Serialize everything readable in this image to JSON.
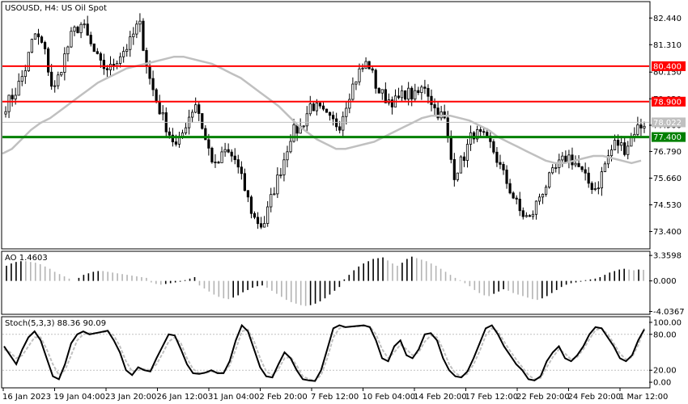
{
  "chart_data": [
    {
      "type": "candlestick",
      "pane": "main",
      "title": "USOUSD, H4:  US Oil Spot",
      "ylim": [
        72.7,
        83.1
      ],
      "y_ticks": [
        "82.440",
        "81.310",
        "80.150",
        "79.020",
        "77.900",
        "76.790",
        "75.660",
        "74.530",
        "73.400"
      ],
      "y_tick_values": [
        82.44,
        81.31,
        80.15,
        79.02,
        77.9,
        76.79,
        75.66,
        74.53,
        73.4
      ],
      "x_tick_labels": [
        "16 Jan 2023",
        "19 Jan 04:00",
        "23 Jan 20:00",
        "26 Jan 12:00",
        "31 Jan 04:00",
        "2 Feb 20:00",
        "7 Feb 12:00",
        "10 Feb 04:00",
        "14 Feb 20:00",
        "17 Feb 12:00",
        "22 Feb 20:00",
        "24 Feb 20:00",
        "1 Mar 12:00"
      ],
      "current_price": "78.022",
      "levels": [
        {
          "value": 80.4,
          "label": "80.400",
          "color": "#ff0000"
        },
        {
          "value": 78.9,
          "label": "78.900",
          "color": "#ff0000"
        },
        {
          "value": 77.4,
          "label": "77.400",
          "color": "#008000"
        }
      ],
      "close_path": [
        78.75,
        79.3,
        80.2,
        81.8,
        81.2,
        79.25,
        80.6,
        81.8,
        82.2,
        81.2,
        80.4,
        80.3,
        80.9,
        81.35,
        82.3,
        80.0,
        78.7,
        77.7,
        76.9,
        78.1,
        78.9,
        77.2,
        76.1,
        76.8,
        76.5,
        75.3,
        74.0,
        73.6,
        75.0,
        76.2,
        77.6,
        77.8,
        78.8,
        78.5,
        78.1,
        77.9,
        79.2,
        80.1,
        80.6,
        79.4,
        79.0,
        78.9,
        79.3,
        79.1,
        79.6,
        78.6,
        78.2,
        75.8,
        76.5,
        77.6,
        77.4,
        77.0,
        76.0,
        75.1,
        74.2,
        73.9,
        74.9,
        75.6,
        76.2,
        76.6,
        76.2,
        75.5,
        75.2,
        76.4,
        77.2,
        76.9,
        77.7,
        78.0
      ],
      "sma_color": "#c0c0c0",
      "sma_path": [
        76.7,
        76.9,
        77.3,
        77.7,
        78.0,
        78.2,
        78.5,
        78.8,
        79.1,
        79.4,
        79.7,
        79.9,
        80.1,
        80.3,
        80.4,
        80.5,
        80.6,
        80.7,
        80.8,
        80.8,
        80.7,
        80.6,
        80.5,
        80.3,
        80.1,
        79.9,
        79.6,
        79.3,
        79.0,
        78.7,
        78.3,
        77.9,
        77.6,
        77.3,
        77.1,
        76.9,
        76.9,
        77.0,
        77.1,
        77.2,
        77.4,
        77.6,
        77.8,
        78.0,
        78.2,
        78.3,
        78.3,
        78.3,
        78.2,
        78.1,
        77.9,
        77.7,
        77.4,
        77.2,
        77.0,
        76.8,
        76.6,
        76.4,
        76.3,
        76.3,
        76.4,
        76.5,
        76.6,
        76.6,
        76.5,
        76.4,
        76.3,
        76.4
      ]
    },
    {
      "type": "histogram",
      "pane": "ao",
      "title": "AO 1.4603",
      "ylim": [
        -4.3,
        3.8
      ],
      "y_ticks": [
        "3.3598",
        "0.000",
        "-4.0367"
      ],
      "y_tick_values": [
        3.3598,
        0.0,
        -4.0367
      ],
      "values": [
        2.0,
        2.3,
        2.5,
        2.6,
        2.6,
        2.5,
        2.4,
        2.2,
        1.9,
        1.6,
        1.2,
        0.9,
        0.6,
        0.3,
        0.0,
        0.4,
        0.8,
        1.0,
        1.2,
        1.3,
        1.3,
        1.2,
        1.1,
        1.0,
        0.9,
        0.8,
        0.7,
        0.6,
        0.5,
        0.4,
        -0.2,
        -0.4,
        -0.5,
        -0.4,
        -0.3,
        -0.2,
        -0.1,
        0.1,
        0.3,
        0.5,
        -0.6,
        -1.0,
        -1.4,
        -1.8,
        -2.1,
        -2.3,
        -2.4,
        -2.2,
        -1.9,
        -1.5,
        -1.2,
        -0.9,
        -0.7,
        -0.6,
        -0.9,
        -1.3,
        -1.7,
        -2.1,
        -2.5,
        -2.8,
        -3.0,
        -3.2,
        -3.3,
        -3.2,
        -3.0,
        -2.7,
        -2.3,
        -1.8,
        -1.3,
        -0.8,
        0.2,
        0.8,
        1.4,
        1.9,
        2.3,
        2.6,
        2.9,
        3.0,
        3.1,
        2.7,
        2.3,
        2.0,
        2.4,
        2.9,
        3.2,
        3.0,
        2.8,
        2.6,
        2.3,
        2.0,
        1.6,
        1.2,
        0.8,
        0.4,
        0.1,
        -0.3,
        -0.7,
        -1.2,
        -1.6,
        -1.9,
        -2.0,
        -1.7,
        -1.4,
        -1.1,
        -1.3,
        -1.6,
        -1.8,
        -2.0,
        -2.2,
        -2.4,
        -2.5,
        -2.3,
        -2.0,
        -1.6,
        -1.2,
        -0.8,
        -0.5,
        -0.3,
        -0.2,
        -0.1,
        0.1,
        0.2,
        0.3,
        0.5,
        0.8,
        1.1,
        1.3,
        1.5,
        1.6,
        1.5,
        1.4,
        1.5,
        1.4603
      ]
    },
    {
      "type": "line",
      "pane": "stoch",
      "title": "Stoch(5,3,3) 88.36 90.09",
      "ylim": [
        -8,
        108
      ],
      "y_ticks": [
        "100.00",
        "80.00",
        "20.00",
        "0.00"
      ],
      "y_tick_values": [
        100,
        80,
        20,
        0
      ],
      "series": [
        {
          "name": "main",
          "color": "#000000",
          "values": [
            60,
            45,
            30,
            55,
            75,
            85,
            70,
            40,
            10,
            5,
            30,
            65,
            80,
            85,
            80,
            82,
            84,
            86,
            70,
            50,
            20,
            12,
            25,
            20,
            18,
            40,
            60,
            80,
            78,
            55,
            30,
            15,
            14,
            16,
            20,
            15,
            15,
            35,
            70,
            95,
            85,
            55,
            25,
            10,
            8,
            30,
            50,
            40,
            20,
            5,
            3,
            2,
            20,
            55,
            90,
            95,
            92,
            93,
            94,
            95,
            92,
            70,
            40,
            35,
            60,
            70,
            45,
            40,
            55,
            80,
            82,
            70,
            40,
            20,
            10,
            8,
            18,
            40,
            65,
            90,
            95,
            80,
            60,
            45,
            30,
            20,
            5,
            3,
            10,
            35,
            50,
            60,
            40,
            35,
            45,
            60,
            80,
            92,
            90,
            75,
            60,
            40,
            35,
            45,
            70,
            88.36
          ]
        },
        {
          "name": "signal",
          "color": "#c0c0c0",
          "values": [
            55,
            50,
            40,
            45,
            60,
            75,
            75,
            55,
            30,
            12,
            20,
            45,
            70,
            80,
            82,
            82,
            83,
            85,
            78,
            60,
            35,
            18,
            20,
            22,
            20,
            30,
            48,
            68,
            75,
            65,
            40,
            22,
            15,
            15,
            18,
            17,
            16,
            28,
            55,
            85,
            88,
            68,
            40,
            18,
            12,
            22,
            40,
            42,
            28,
            10,
            5,
            3,
            12,
            40,
            75,
            90,
            92,
            93,
            93,
            94,
            93,
            80,
            55,
            40,
            50,
            63,
            55,
            45,
            50,
            68,
            78,
            75,
            55,
            30,
            15,
            10,
            14,
            30,
            52,
            78,
            90,
            85,
            68,
            52,
            38,
            25,
            12,
            5,
            7,
            25,
            42,
            55,
            48,
            38,
            42,
            55,
            72,
            87,
            90,
            80,
            65,
            48,
            38,
            42,
            62,
            90.09
          ]
        }
      ]
    }
  ]
}
